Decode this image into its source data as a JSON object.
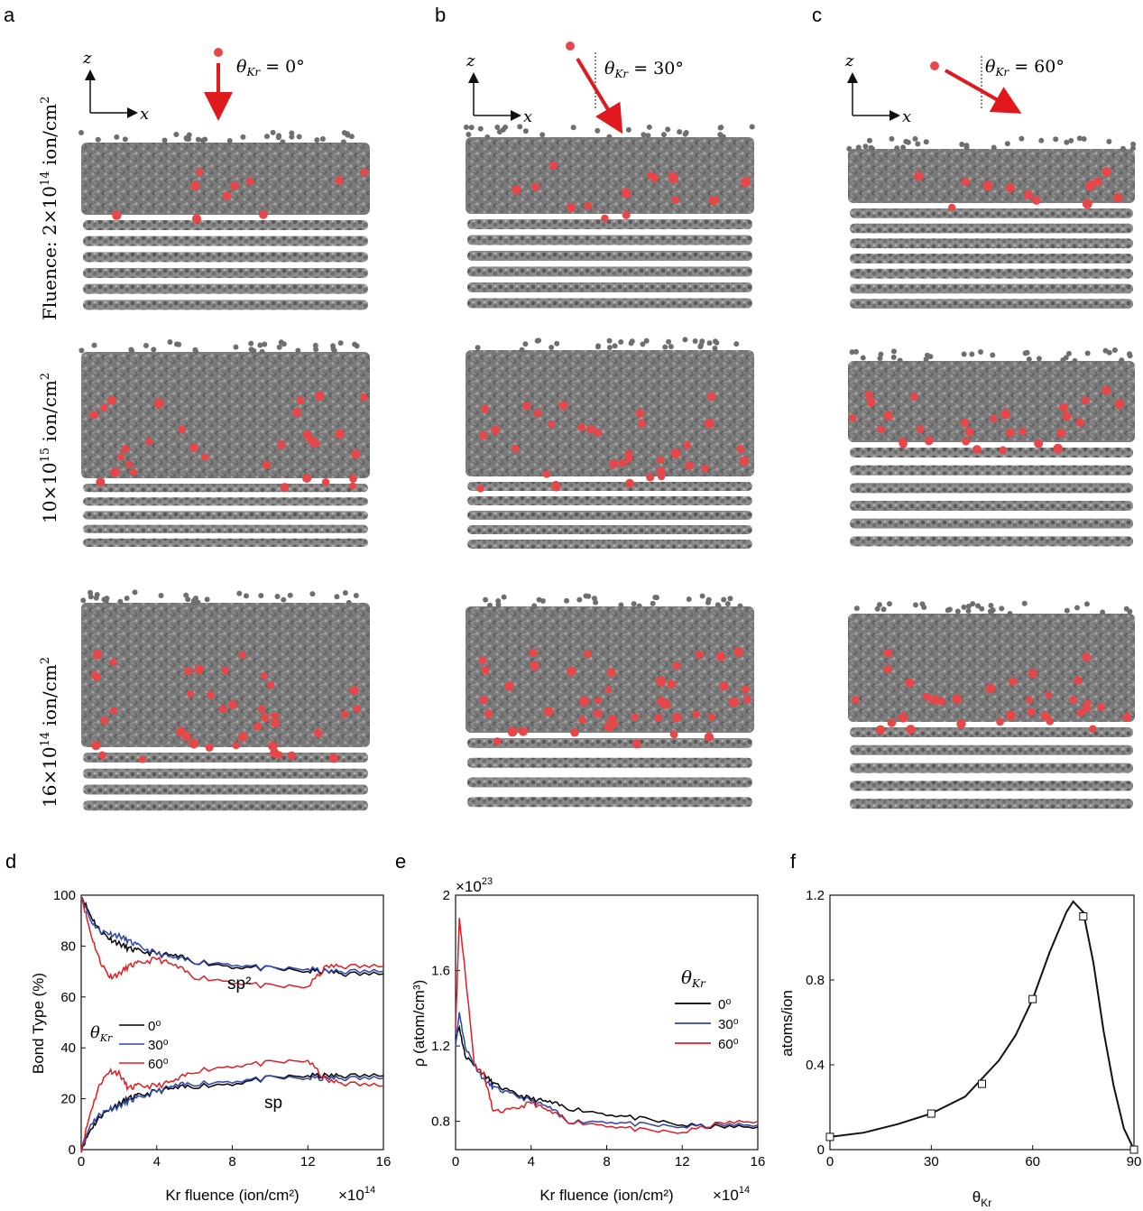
{
  "panels": {
    "a": "a",
    "b": "b",
    "c": "c",
    "d": "d",
    "e": "e",
    "f": "f"
  },
  "row_labels": {
    "row1_prefix": "Fluence: 2×10",
    "row1_exp": "14",
    "row1_unit": " ion/cm",
    "row2_prefix": "10×10",
    "row2_exp": "15",
    "row2_unit": " ion/cm",
    "row3_prefix": "16×10",
    "row3_exp": "14",
    "row3_unit": " ion/cm",
    "sq": "2"
  },
  "axes_labels": {
    "z": "z",
    "x": "x"
  },
  "incidence": {
    "theta_sym": "θ",
    "theta_sub": "Kr",
    "a_value": " = 0°",
    "b_value": " = 30°",
    "c_value": " = 60°"
  },
  "colors": {
    "carbon": "#6e6e6e",
    "krypton": "#e8474a",
    "arrow": "#e0191f",
    "series_0": "#000000",
    "series_30": "#2b46a8",
    "series_60": "#e31b23"
  },
  "chart_data": [
    {
      "id": "d",
      "type": "line",
      "xlabel": "Kr fluence (ion/cm²)",
      "xscale_label": "×10",
      "xscale_exp": "14",
      "ylabel": "Bond Type (%)",
      "xlim": [
        0,
        16
      ],
      "ylim": [
        0,
        100
      ],
      "xticks": [
        "0",
        "4",
        "8",
        "12",
        "16"
      ],
      "yticks": [
        "0",
        "20",
        "40",
        "60",
        "80",
        "100"
      ],
      "annotations": {
        "sp2": "sp²",
        "sp": "sp"
      },
      "legend_title": "θKr",
      "legend": [
        "0⁰",
        "30⁰",
        "60⁰"
      ],
      "x": [
        0,
        0.5,
        1,
        1.5,
        2,
        2.5,
        3,
        4,
        5,
        6,
        8,
        10,
        12,
        13,
        14,
        16
      ],
      "series": [
        {
          "name": "0⁰ sp2",
          "values": [
            100,
            92,
            86,
            83,
            81,
            79,
            78,
            77,
            76,
            74,
            72,
            71,
            70,
            70,
            69,
            69
          ]
        },
        {
          "name": "30⁰ sp2",
          "values": [
            100,
            90,
            86,
            85,
            84,
            82,
            80,
            77,
            75,
            74,
            73,
            71,
            71,
            70,
            70,
            70
          ]
        },
        {
          "name": "60⁰ sp2",
          "values": [
            100,
            85,
            74,
            68,
            69,
            72,
            73,
            75,
            72,
            68,
            66,
            64,
            64,
            72,
            72,
            72
          ]
        },
        {
          "name": "0⁰ sp",
          "values": [
            0,
            8,
            13,
            16,
            18,
            20,
            21,
            23,
            24,
            25,
            26,
            28,
            29,
            29,
            29,
            29
          ]
        },
        {
          "name": "30⁰ sp",
          "values": [
            0,
            10,
            14,
            16,
            17,
            19,
            20,
            23,
            25,
            26,
            27,
            28,
            28,
            28,
            28,
            28
          ]
        },
        {
          "name": "60⁰ sp",
          "values": [
            0,
            15,
            26,
            31,
            30,
            24,
            25,
            25,
            27,
            31,
            33,
            34,
            35,
            27,
            26,
            25
          ]
        }
      ]
    },
    {
      "id": "e",
      "type": "line",
      "xlabel": "Kr fluence (ion/cm²)",
      "xscale_label": "×10",
      "xscale_exp": "14",
      "ylabel": "ρ (atom/cm³)",
      "yscale_label": "×10",
      "yscale_exp": "23",
      "xlim": [
        0,
        16
      ],
      "ylim": [
        0.65,
        2.0
      ],
      "xticks": [
        "0",
        "4",
        "8",
        "12",
        "16"
      ],
      "yticks": [
        "0.8",
        "1.2",
        "1.6",
        "2"
      ],
      "legend_title": "θKr",
      "legend": [
        "0⁰",
        "30⁰",
        "60⁰"
      ],
      "x": [
        0,
        0.2,
        0.5,
        1,
        1.5,
        2,
        3,
        4,
        5,
        6,
        8,
        10,
        12,
        14,
        16
      ],
      "series": [
        {
          "name": "0⁰",
          "values": [
            1.25,
            1.3,
            1.15,
            1.1,
            1.05,
            1.0,
            0.95,
            0.92,
            0.9,
            0.87,
            0.84,
            0.81,
            0.78,
            0.77,
            0.77
          ]
        },
        {
          "name": "30⁰",
          "values": [
            1.2,
            1.38,
            1.2,
            1.1,
            1.02,
            0.98,
            0.94,
            0.91,
            0.87,
            0.8,
            0.8,
            0.78,
            0.77,
            0.78,
            0.78
          ]
        },
        {
          "name": "60⁰",
          "values": [
            1.3,
            1.88,
            1.6,
            1.1,
            1.05,
            0.85,
            0.86,
            0.9,
            0.85,
            0.8,
            0.78,
            0.75,
            0.74,
            0.79,
            0.8
          ]
        }
      ]
    },
    {
      "id": "f",
      "type": "line",
      "xlabel": "θKr",
      "ylabel": "atoms/ion",
      "xlim": [
        0,
        90
      ],
      "ylim": [
        0,
        1.2
      ],
      "xticks": [
        "0",
        "30",
        "60",
        "90"
      ],
      "yticks": [
        "0",
        "0.4",
        "0.8",
        "1.2"
      ],
      "points": {
        "x": [
          0,
          30,
          45,
          60,
          75,
          90
        ],
        "y": [
          0.06,
          0.17,
          0.31,
          0.71,
          1.1,
          0.0
        ]
      },
      "curve": {
        "x": [
          0,
          10,
          20,
          30,
          40,
          50,
          55,
          60,
          65,
          70,
          72,
          75,
          78,
          81,
          84,
          87,
          90
        ],
        "y": [
          0.06,
          0.08,
          0.12,
          0.17,
          0.25,
          0.42,
          0.54,
          0.71,
          0.93,
          1.12,
          1.17,
          1.12,
          0.88,
          0.56,
          0.3,
          0.1,
          0.0
        ]
      }
    }
  ]
}
